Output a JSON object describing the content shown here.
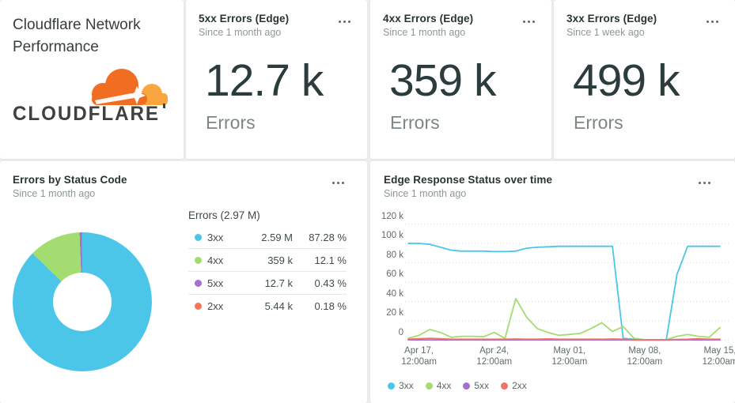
{
  "title_card": {
    "title_line1": "Cloudflare Network",
    "title_line2": "Performance",
    "logo_text": "CLOUDFLARE"
  },
  "stat_cards": [
    {
      "title": "5xx Errors (Edge)",
      "subtitle": "Since 1 month ago",
      "value": "12.7 k",
      "unit_label": "Errors"
    },
    {
      "title": "4xx Errors (Edge)",
      "subtitle": "Since 1 month ago",
      "value": "359 k",
      "unit_label": "Errors"
    },
    {
      "title": "3xx Errors (Edge)",
      "subtitle": "Since 1 week ago",
      "value": "499 k",
      "unit_label": "Errors"
    }
  ],
  "chart_data": [
    {
      "type": "pie",
      "title": "Errors by Status Code",
      "subtitle": "Since 1 month ago",
      "total_label": "Errors (2.97 M)",
      "rows": [
        {
          "label": "3xx",
          "value": "2.59 M",
          "percent": "87.28 %",
          "pct": 87.28,
          "color": "#4cc6e8"
        },
        {
          "label": "4xx",
          "value": "359 k",
          "percent": "12.1 %",
          "pct": 12.1,
          "color": "#a3dc71"
        },
        {
          "label": "5xx",
          "value": "12.7 k",
          "percent": "0.43 %",
          "pct": 0.43,
          "color": "#a56fd0"
        },
        {
          "label": "2xx",
          "value": "5.44 k",
          "percent": "0.18 %",
          "pct": 0.18,
          "color": "#f4765a"
        }
      ]
    },
    {
      "type": "line",
      "title": "Edge Response Status over time",
      "subtitle": "Since 1 month ago",
      "ylim_k": [
        0,
        120
      ],
      "grid": "dotted",
      "legend_position": "bottom",
      "y_ticks": [
        {
          "label": "120 k",
          "value": 120
        },
        {
          "label": "100 k",
          "value": 100
        },
        {
          "label": "80 k",
          "value": 80
        },
        {
          "label": "60 k",
          "value": 60
        },
        {
          "label": "40 k",
          "value": 40
        },
        {
          "label": "20 k",
          "value": 20
        },
        {
          "label": "0",
          "value": 0
        }
      ],
      "x_ticks": [
        {
          "line1": "Apr 17,",
          "line2": "12:00am",
          "day": 1
        },
        {
          "line1": "Apr 24,",
          "line2": "12:00am",
          "day": 8
        },
        {
          "line1": "May 01,",
          "line2": "12:00am",
          "day": 15
        },
        {
          "line1": "May 08,",
          "line2": "12:00am",
          "day": 22
        },
        {
          "line1": "May 15,",
          "line2": "12:00am",
          "day": 29
        }
      ],
      "series": [
        {
          "name": "3xx",
          "color": "#4cc6e8",
          "values_k": [
            100,
            100,
            99,
            96,
            93,
            92,
            92,
            92,
            91.5,
            91.5,
            92,
            95,
            96,
            96.5,
            97,
            97,
            97,
            97,
            97,
            97,
            2,
            1,
            0.5,
            0.4,
            0.3,
            68,
            97,
            97,
            97,
            97
          ]
        },
        {
          "name": "4xx",
          "color": "#a3dc71",
          "values_k": [
            2,
            5,
            11,
            8,
            3,
            4,
            4,
            3.5,
            8,
            2,
            43,
            24,
            12,
            8,
            5,
            6,
            7,
            12,
            18,
            9,
            14,
            2,
            0.5,
            0.3,
            0.5,
            4,
            6,
            4,
            3,
            13
          ]
        },
        {
          "name": "5xx",
          "color": "#a56fd0",
          "values_k": [
            0.3,
            0.3,
            0.3,
            0.3,
            0.3,
            0.3,
            0.3,
            0.3,
            0.3,
            0.3,
            0.3,
            0.3,
            0.3,
            0.3,
            0.3,
            0.3,
            0.3,
            0.3,
            0.3,
            0.3,
            0.3,
            0.2,
            0.2,
            0.2,
            0.2,
            0.3,
            0.3,
            0.3,
            0.3,
            0.3
          ]
        },
        {
          "name": "2xx",
          "color": "#ef7468",
          "values_k": [
            1,
            1.5,
            2,
            1.5,
            1,
            1,
            1,
            1,
            1,
            1,
            1.2,
            1,
            1,
            1.3,
            1,
            1,
            1,
            1,
            1,
            1.2,
            1,
            0.5,
            0.4,
            0.4,
            0.5,
            0.8,
            1,
            1.5,
            1,
            1
          ]
        }
      ]
    }
  ],
  "colors": {
    "logo_orange": "#f06d22",
    "logo_light_orange": "#f9a63e",
    "logo_text": "#3f4041",
    "gridline": "#d3d7d7"
  }
}
